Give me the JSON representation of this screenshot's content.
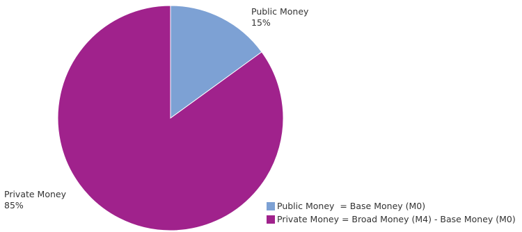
{
  "chart_data": {
    "type": "pie",
    "slices": [
      {
        "name": "Public Money",
        "value": 15,
        "value_label": "15%",
        "color": "#7da1d4",
        "legend": "Public Money  = Base Money (M0)"
      },
      {
        "name": "Private Money",
        "value": 85,
        "value_label": "85%",
        "color": "#a0228c",
        "legend": "Private Money = Broad Money (M4) - Base Money (M0)"
      }
    ],
    "start": "12 o'clock",
    "direction": "clockwise",
    "legend_position": "bottom-right"
  }
}
